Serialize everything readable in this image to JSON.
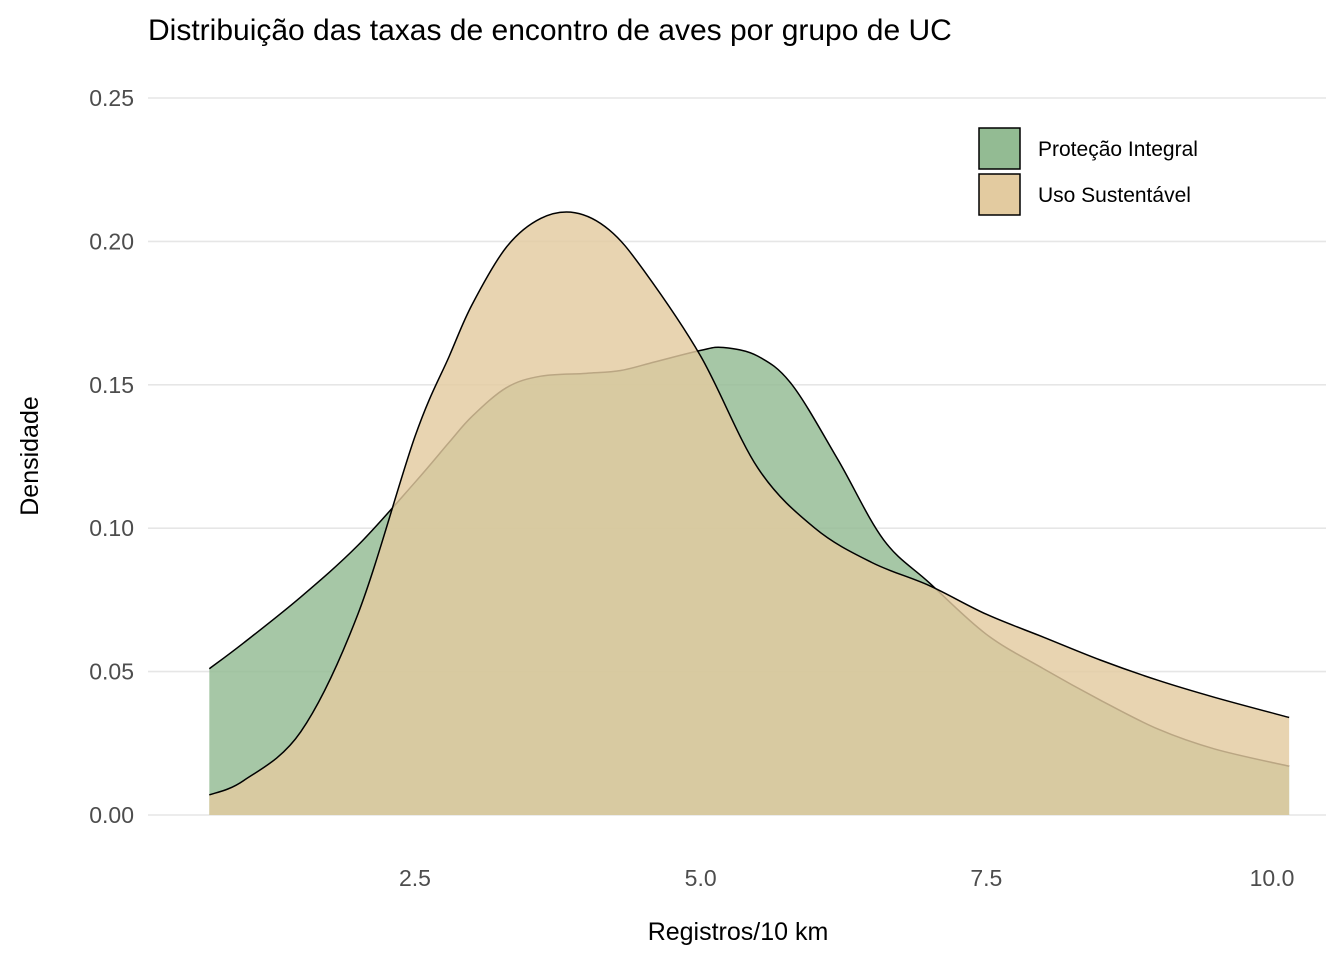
{
  "chart_data": {
    "type": "area",
    "title": "Distribuição das taxas de encontro de aves por grupo de UC",
    "xlabel": "Registros/10 km",
    "ylabel": "Densidade",
    "xlim": [
      0.7,
      10.15
    ],
    "ylim": [
      0,
      0.25
    ],
    "x_ticks": [
      2.5,
      5.0,
      7.5,
      10.0
    ],
    "x_tick_labels": [
      "2.5",
      "5.0",
      "7.5",
      "10.0"
    ],
    "y_ticks": [
      0,
      0.05,
      0.1,
      0.15,
      0.2,
      0.25
    ],
    "y_tick_labels": [
      "0.00",
      "0.05",
      "0.10",
      "0.15",
      "0.20",
      "0.25"
    ],
    "grid": true,
    "legend_position": "top-right",
    "series": [
      {
        "name": "Proteção Integral",
        "color": "#93bb93",
        "x": [
          0.7,
          1.0,
          1.5,
          2.0,
          2.5,
          2.8,
          3.0,
          3.3,
          3.6,
          4.0,
          4.3,
          4.6,
          5.0,
          5.2,
          5.5,
          5.8,
          6.2,
          6.6,
          7.0,
          7.5,
          8.0,
          8.5,
          9.0,
          9.5,
          10.15
        ],
        "values": [
          0.051,
          0.06,
          0.076,
          0.094,
          0.116,
          0.13,
          0.139,
          0.149,
          0.153,
          0.154,
          0.155,
          0.158,
          0.162,
          0.163,
          0.16,
          0.15,
          0.124,
          0.096,
          0.081,
          0.063,
          0.051,
          0.04,
          0.03,
          0.023,
          0.017
        ]
      },
      {
        "name": "Uso Sustentável",
        "color": "#e3cba0",
        "x": [
          0.7,
          1.0,
          1.5,
          2.0,
          2.5,
          2.8,
          3.0,
          3.3,
          3.6,
          3.9,
          4.2,
          4.5,
          5.0,
          5.5,
          6.0,
          6.5,
          7.0,
          7.5,
          8.0,
          8.5,
          9.0,
          9.5,
          10.15
        ],
        "values": [
          0.007,
          0.012,
          0.029,
          0.07,
          0.132,
          0.16,
          0.178,
          0.198,
          0.208,
          0.21,
          0.204,
          0.19,
          0.16,
          0.121,
          0.1,
          0.088,
          0.08,
          0.07,
          0.062,
          0.054,
          0.047,
          0.041,
          0.034
        ]
      }
    ]
  }
}
